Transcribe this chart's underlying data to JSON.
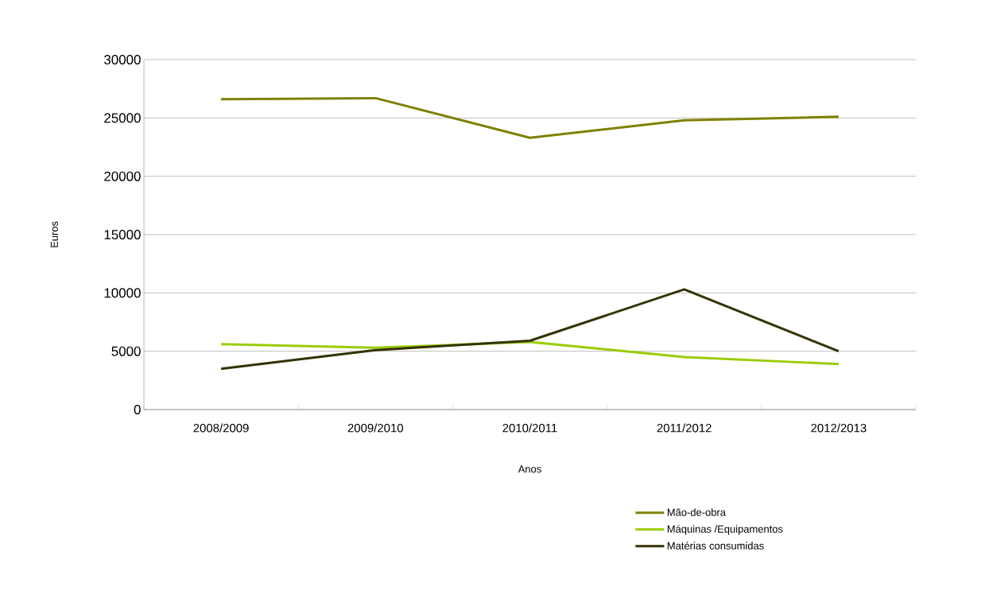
{
  "chart_data": {
    "type": "line",
    "xlabel": "Anos",
    "ylabel": "Euros",
    "categories": [
      "2008/2009",
      "2009/2010",
      "2010/2011",
      "2011/2012",
      "2012/2013"
    ],
    "series": [
      {
        "name": "Mão-de-obra",
        "color": "#808000",
        "values": [
          26600,
          26700,
          23300,
          24800,
          25100
        ]
      },
      {
        "name": "Máquinas /Equipamentos",
        "color": "#99cc00",
        "values": [
          5600,
          5300,
          5800,
          4500,
          3900
        ]
      },
      {
        "name": "Matérias consumidas",
        "color": "#333300",
        "values": [
          3500,
          5100,
          5900,
          10300,
          5000
        ]
      }
    ],
    "ylim": [
      0,
      30000
    ],
    "yticks": [
      0,
      5000,
      10000,
      15000,
      20000,
      25000,
      30000
    ],
    "grid": "y",
    "legend": "bottom",
    "marker": "none",
    "line_style": "solid"
  }
}
